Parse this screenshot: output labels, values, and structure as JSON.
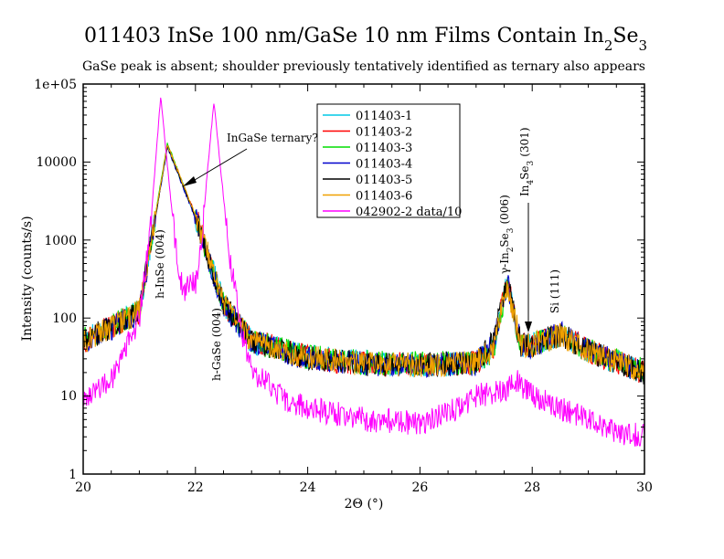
{
  "chart_data": {
    "type": "line",
    "title": "011403 InSe 100 nm/GaSe 10 nm Films Contain In",
    "title_sub_a": "2",
    "title_mid": "Se",
    "title_sub_b": "3",
    "subtitle": "GaSe peak is absent; shoulder previously tentatively identified as ternary also appears",
    "xlabel": "2Θ (°)",
    "ylabel": "Intensity (counts/s)",
    "xlim": [
      20,
      30
    ],
    "ylim": [
      1,
      100000
    ],
    "yscale": "log",
    "x_ticks": [
      "20",
      "22",
      "24",
      "26",
      "28",
      "30"
    ],
    "y_ticks": [
      "1",
      "10",
      "100",
      "1000",
      "10000",
      "1e+05"
    ],
    "grid": false,
    "legend_position": "top-center",
    "series": [
      {
        "name": "011403-1",
        "color": "#00c8e6",
        "x": [
          20,
          21,
          21.5,
          22,
          22.5,
          23,
          24,
          25,
          26,
          27,
          27.3,
          27.55,
          27.8,
          28,
          28.5,
          29,
          30
        ],
        "y": [
          55,
          120,
          16000,
          2000,
          150,
          50,
          32,
          27,
          25,
          26,
          40,
          280,
          45,
          45,
          60,
          38,
          20
        ]
      },
      {
        "name": "011403-2",
        "color": "#ff0000",
        "x": [
          20,
          21,
          21.5,
          22,
          22.5,
          23,
          24,
          25,
          26,
          27,
          27.3,
          27.55,
          27.8,
          28,
          28.5,
          29,
          30
        ],
        "y": [
          50,
          118,
          16500,
          2100,
          155,
          52,
          31,
          26,
          25,
          27,
          40,
          300,
          45,
          45,
          62,
          38,
          20
        ]
      },
      {
        "name": "011403-3",
        "color": "#00dd00",
        "x": [
          20,
          21,
          21.5,
          22,
          22.5,
          23,
          24,
          25,
          26,
          27,
          27.3,
          27.55,
          27.8,
          28,
          28.5,
          29,
          30
        ],
        "y": [
          52,
          122,
          17500,
          2000,
          150,
          50,
          32,
          27,
          26,
          27,
          38,
          260,
          46,
          46,
          60,
          39,
          21
        ]
      },
      {
        "name": "011403-4",
        "color": "#0000cc",
        "x": [
          20,
          21,
          21.5,
          22,
          22.5,
          23,
          24,
          25,
          26,
          27,
          27.3,
          27.55,
          27.8,
          28,
          28.5,
          29,
          30
        ],
        "y": [
          48,
          115,
          15500,
          1900,
          148,
          50,
          30,
          26,
          24,
          26,
          45,
          300,
          45,
          44,
          64,
          38,
          20
        ]
      },
      {
        "name": "011403-5",
        "color": "#000000",
        "x": [
          20,
          21,
          21.5,
          22,
          22.5,
          23,
          24,
          25,
          26,
          27,
          27.3,
          27.55,
          27.8,
          28,
          28.5,
          29,
          30
        ],
        "y": [
          50,
          120,
          16000,
          2000,
          150,
          50,
          31,
          26,
          25,
          27,
          48,
          310,
          44,
          45,
          62,
          38,
          20
        ]
      },
      {
        "name": "011403-6",
        "color": "#f0a000",
        "x": [
          20,
          21,
          21.5,
          22,
          22.5,
          23,
          24,
          25,
          26,
          27,
          27.3,
          27.55,
          27.8,
          28,
          28.5,
          29,
          30
        ],
        "y": [
          50,
          120,
          16500,
          2100,
          152,
          50,
          31,
          26,
          25,
          27,
          40,
          280,
          45,
          45,
          60,
          38,
          20
        ]
      },
      {
        "name": "042902-2 data/10",
        "color": "#ff00ff",
        "x": [
          20,
          20.5,
          21,
          21.2,
          21.38,
          21.5,
          21.7,
          21.8,
          21.9,
          22.0,
          22.1,
          22.2,
          22.33,
          22.45,
          22.6,
          22.8,
          23,
          23.5,
          24,
          25,
          26,
          26.5,
          27,
          27.5,
          27.7,
          27.75,
          27.85,
          28,
          28.5,
          29,
          29.5,
          30
        ],
        "y": [
          10,
          16,
          100,
          1500,
          70000,
          9000,
          350,
          220,
          300,
          260,
          700,
          6000,
          60000,
          8000,
          700,
          80,
          22,
          10,
          7,
          5,
          4.5,
          6,
          10,
          12,
          16,
          15,
          12,
          10,
          7,
          5,
          3.5,
          3
        ]
      }
    ],
    "annotations": {
      "ternary": "InGaSe ternary?",
      "inse004": "h-InSe (004)",
      "gase004": "h-GaSe (004)",
      "gamma_main": "γ-In",
      "gamma_sub2": "2",
      "gamma_mid": "Se",
      "gamma_sub3": "3",
      "gamma_tail": "(006)",
      "in4se3_main": "In",
      "in4se3_sub4": "4",
      "in4se3_mid": "Se",
      "in4se3_sub3": "3",
      "in4se3_tail": "(301)",
      "si111": "Si (111)"
    }
  }
}
